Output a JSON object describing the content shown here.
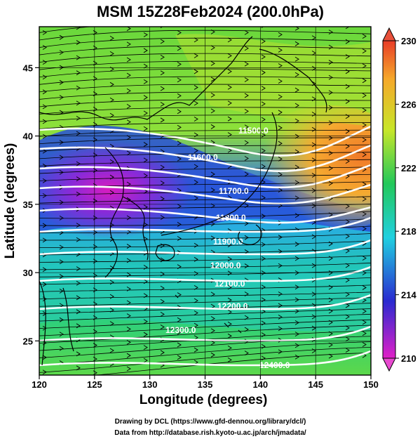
{
  "title": "MSM 15Z28Feb2024 (200.0hPa)",
  "xlabel": "Longitude (degrees)",
  "ylabel": "Latitude  (degrees)",
  "x_ticks": [
    "120",
    "125",
    "130",
    "135",
    "140",
    "145",
    "150"
  ],
  "y_ticks": [
    "25",
    "30",
    "35",
    "40",
    "45"
  ],
  "colorbar": {
    "ticks": [
      "230",
      "226",
      "222",
      "218",
      "214",
      "210"
    ],
    "colors": [
      "#c81ea0",
      "#2a2ad0",
      "#20c8e0",
      "#22c85a",
      "#c8e628",
      "#f5a82a",
      "#e83c28"
    ]
  },
  "contour_labels": [
    "11500.0",
    "11600.0",
    "11700.0",
    "11800.0",
    "11900.0",
    "12000.0",
    "12100.0",
    "12200.0",
    "12300.0",
    "12400.0"
  ],
  "credits": {
    "line1": "Drawing by DCL (https://www.gfd-dennou.org/library/dcl/)",
    "line2": "Data from http://database.rish.kyoto-u.ac.jp/arch/jmadata/"
  }
}
